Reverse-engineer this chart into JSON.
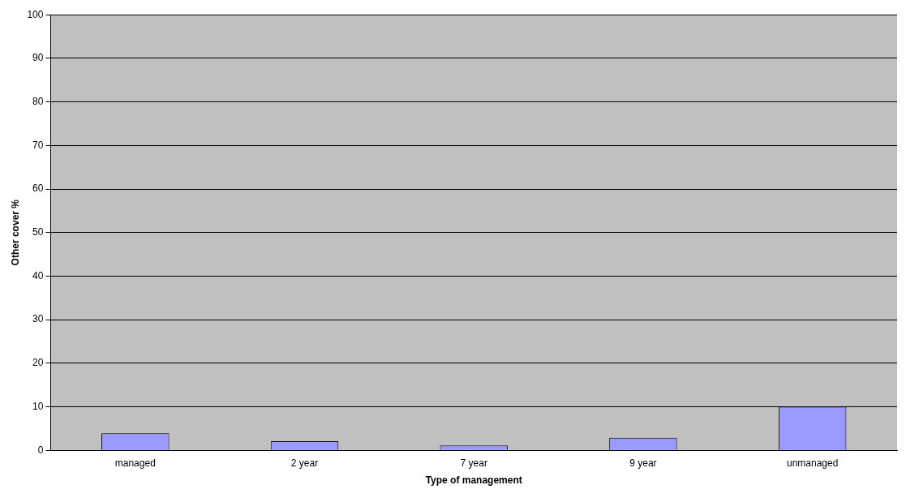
{
  "chart_data": {
    "type": "bar",
    "xlabel": "Type of management",
    "ylabel": "Other cover %",
    "categories": [
      "managed",
      "2 year",
      "7 year",
      "9 year",
      "unmanaged"
    ],
    "values": [
      3.9,
      2.1,
      1.1,
      2.9,
      10
    ],
    "color": "#9999ff",
    "ylim": [
      0,
      100
    ],
    "yticks": [
      0,
      10,
      20,
      30,
      40,
      50,
      60,
      70,
      80,
      90,
      100
    ],
    "grid": "y",
    "legend": false
  }
}
